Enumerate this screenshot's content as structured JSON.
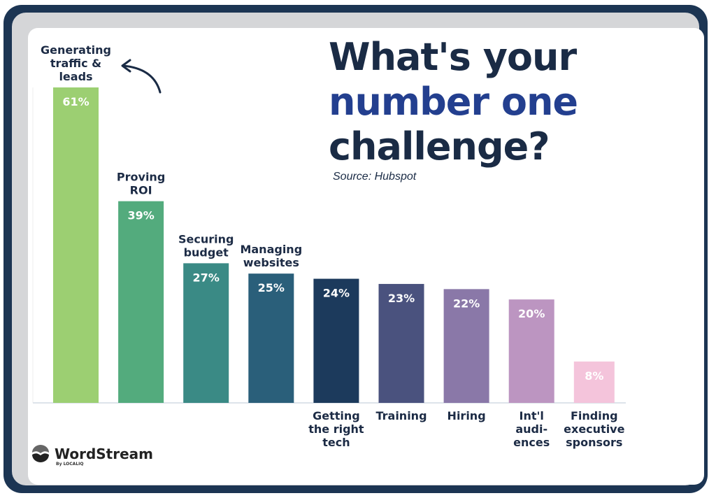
{
  "title": {
    "line1": "What's your",
    "line2": "number one",
    "line3": "challenge?"
  },
  "source": "Source: Hubspot",
  "logo": {
    "name": "WordStream",
    "sub": "By LOCALIQ"
  },
  "chart_data": {
    "type": "bar",
    "categories": [
      "Generating traffic & leads",
      "Proving ROI",
      "Securing budget",
      "Managing websites",
      "Getting the right tech",
      "Training",
      "Hiring",
      "Int'l audiences",
      "Finding executive sponsors"
    ],
    "category_lines": [
      [
        "Generating",
        "traffic &",
        "leads"
      ],
      [
        "Proving",
        "ROI"
      ],
      [
        "Securing",
        "budget"
      ],
      [
        "Managing",
        "websites"
      ],
      [
        "Getting",
        "the right",
        "tech"
      ],
      [
        "Training"
      ],
      [
        "Hiring"
      ],
      [
        "Int'l",
        "audi-",
        "ences"
      ],
      [
        "Finding",
        "executive",
        "sponsors"
      ]
    ],
    "label_position": [
      "above",
      "above",
      "above",
      "above",
      "below",
      "below",
      "below",
      "below",
      "below"
    ],
    "values": [
      61,
      39,
      27,
      25,
      24,
      23,
      22,
      20,
      8
    ],
    "data_labels": [
      "61%",
      "39%",
      "27%",
      "25%",
      "24%",
      "23%",
      "22%",
      "20%",
      "8%"
    ],
    "unit": "%",
    "ylim": [
      0,
      61
    ],
    "colors": [
      "#9ccf72",
      "#53ab7d",
      "#3a8a85",
      "#2a5f7a",
      "#1c3a5c",
      "#4a527e",
      "#8a78a8",
      "#bc95c1",
      "#f4c4db"
    ],
    "grid": false,
    "legend": "none"
  }
}
